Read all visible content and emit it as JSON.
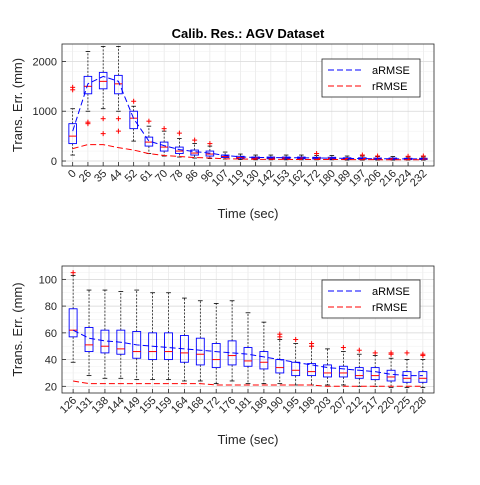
{
  "figure": {
    "title": "Calib. Res.: AGV Dataset"
  },
  "chart_data": [
    {
      "type": "box",
      "xlabel": "Time (sec)",
      "ylabel": "Trans. Err. (mm)",
      "ylim": [
        -100,
        2350
      ],
      "yticks": [
        0,
        1000,
        2000
      ],
      "grid": true,
      "legend_position": "top-right",
      "categories": [
        "0",
        "26",
        "35",
        "44",
        "52",
        "61",
        "70",
        "78",
        "86",
        "96",
        "107",
        "119",
        "130",
        "142",
        "153",
        "162",
        "172",
        "180",
        "189",
        "197",
        "206",
        "216",
        "224",
        "232"
      ],
      "boxes": [
        {
          "q1": 350,
          "median": 500,
          "q3": 750,
          "lo": 120,
          "hi": 1050
        },
        {
          "q1": 1350,
          "median": 1500,
          "q3": 1700,
          "lo": 1000,
          "hi": 2200
        },
        {
          "q1": 1450,
          "median": 1600,
          "q3": 1780,
          "lo": 1050,
          "hi": 2300
        },
        {
          "q1": 1350,
          "median": 1550,
          "q3": 1720,
          "lo": 1000,
          "hi": 2300
        },
        {
          "q1": 650,
          "median": 860,
          "q3": 1000,
          "lo": 400,
          "hi": 1100
        },
        {
          "q1": 300,
          "median": 380,
          "q3": 480,
          "lo": 150,
          "hi": 700
        },
        {
          "q1": 200,
          "median": 280,
          "q3": 380,
          "lo": 100,
          "hi": 600
        },
        {
          "q1": 150,
          "median": 200,
          "q3": 280,
          "lo": 80,
          "hi": 450
        },
        {
          "q1": 120,
          "median": 160,
          "q3": 220,
          "lo": 60,
          "hi": 350
        },
        {
          "q1": 100,
          "median": 140,
          "q3": 200,
          "lo": 50,
          "hi": 300
        },
        {
          "q1": 70,
          "median": 90,
          "q3": 120,
          "lo": 40,
          "hi": 180
        },
        {
          "q1": 55,
          "median": 70,
          "q3": 95,
          "lo": 30,
          "hi": 140
        },
        {
          "q1": 45,
          "median": 60,
          "q3": 80,
          "lo": 25,
          "hi": 120
        },
        {
          "q1": 45,
          "median": 60,
          "q3": 80,
          "lo": 25,
          "hi": 120
        },
        {
          "q1": 45,
          "median": 60,
          "q3": 80,
          "lo": 25,
          "hi": 120
        },
        {
          "q1": 45,
          "median": 60,
          "q3": 80,
          "lo": 25,
          "hi": 120
        },
        {
          "q1": 40,
          "median": 55,
          "q3": 75,
          "lo": 25,
          "hi": 110
        },
        {
          "q1": 40,
          "median": 55,
          "q3": 75,
          "lo": 25,
          "hi": 110
        },
        {
          "q1": 35,
          "median": 50,
          "q3": 65,
          "lo": 20,
          "hi": 100
        },
        {
          "q1": 35,
          "median": 50,
          "q3": 65,
          "lo": 20,
          "hi": 100
        },
        {
          "q1": 30,
          "median": 45,
          "q3": 60,
          "lo": 20,
          "hi": 90
        },
        {
          "q1": 30,
          "median": 45,
          "q3": 60,
          "lo": 20,
          "hi": 90
        },
        {
          "q1": 30,
          "median": 40,
          "q3": 55,
          "lo": 20,
          "hi": 80
        },
        {
          "q1": 30,
          "median": 40,
          "q3": 55,
          "lo": 20,
          "hi": 80
        }
      ],
      "outliers": [
        {
          "i": 0,
          "y": 1480
        },
        {
          "i": 0,
          "y": 1430
        },
        {
          "i": 1,
          "y": 780
        },
        {
          "i": 1,
          "y": 750
        },
        {
          "i": 2,
          "y": 850
        },
        {
          "i": 2,
          "y": 550
        },
        {
          "i": 3,
          "y": 850
        },
        {
          "i": 3,
          "y": 600
        },
        {
          "i": 4,
          "y": 1200
        },
        {
          "i": 5,
          "y": 800
        },
        {
          "i": 6,
          "y": 650
        },
        {
          "i": 7,
          "y": 560
        },
        {
          "i": 8,
          "y": 420
        },
        {
          "i": 9,
          "y": 350
        },
        {
          "i": 16,
          "y": 150
        },
        {
          "i": 19,
          "y": 120
        },
        {
          "i": 20,
          "y": 100
        },
        {
          "i": 22,
          "y": 95
        },
        {
          "i": 23,
          "y": 100
        }
      ],
      "series": [
        {
          "name": "aRMSE",
          "color": "#0000ff",
          "values": [
            600,
            1550,
            1700,
            1600,
            850,
            400,
            310,
            230,
            190,
            160,
            110,
            85,
            70,
            68,
            66,
            64,
            60,
            58,
            52,
            50,
            45,
            44,
            42,
            42
          ]
        },
        {
          "name": "rRMSE",
          "color": "#ff0000",
          "values": [
            250,
            330,
            330,
            270,
            220,
            150,
            110,
            90,
            70,
            60,
            45,
            40,
            35,
            33,
            32,
            31,
            30,
            30,
            28,
            28,
            27,
            27,
            26,
            26
          ]
        }
      ]
    },
    {
      "type": "box",
      "xlabel": "Time (sec)",
      "ylabel": "Trans. Err. (mm)",
      "ylim": [
        15,
        110
      ],
      "yticks": [
        20,
        40,
        60,
        80,
        100
      ],
      "grid": true,
      "legend_position": "top-right",
      "categories": [
        "126",
        "131",
        "138",
        "144",
        "149",
        "155",
        "159",
        "164",
        "168",
        "172",
        "176",
        "181",
        "186",
        "190",
        "195",
        "198",
        "203",
        "207",
        "212",
        "217",
        "220",
        "225",
        "228"
      ],
      "boxes": [
        {
          "q1": 57,
          "median": 62,
          "q3": 78,
          "lo": 38,
          "hi": 103
        },
        {
          "q1": 46,
          "median": 51,
          "q3": 64,
          "lo": 28,
          "hi": 92
        },
        {
          "q1": 45,
          "median": 50,
          "q3": 62,
          "lo": 26,
          "hi": 92
        },
        {
          "q1": 44,
          "median": 48,
          "q3": 62,
          "lo": 26,
          "hi": 91
        },
        {
          "q1": 41,
          "median": 46,
          "q3": 61,
          "lo": 25,
          "hi": 92
        },
        {
          "q1": 40,
          "median": 46,
          "q3": 60,
          "lo": 25,
          "hi": 90
        },
        {
          "q1": 40,
          "median": 46,
          "q3": 60,
          "lo": 25,
          "hi": 90
        },
        {
          "q1": 38,
          "median": 45,
          "q3": 58,
          "lo": 24,
          "hi": 86
        },
        {
          "q1": 36,
          "median": 44,
          "q3": 56,
          "lo": 24,
          "hi": 84
        },
        {
          "q1": 34,
          "median": 40,
          "q3": 52,
          "lo": 22,
          "hi": 82
        },
        {
          "q1": 36,
          "median": 43,
          "q3": 54,
          "lo": 24,
          "hi": 84
        },
        {
          "q1": 35,
          "median": 39,
          "q3": 49,
          "lo": 22,
          "hi": 75
        },
        {
          "q1": 33,
          "median": 38,
          "q3": 46,
          "lo": 22,
          "hi": 68
        },
        {
          "q1": 30,
          "median": 34,
          "q3": 40,
          "lo": 22,
          "hi": 55
        },
        {
          "q1": 28,
          "median": 32,
          "q3": 38,
          "lo": 21,
          "hi": 52
        },
        {
          "q1": 28,
          "median": 31,
          "q3": 37,
          "lo": 21,
          "hi": 50
        },
        {
          "q1": 27,
          "median": 30,
          "q3": 36,
          "lo": 21,
          "hi": 48
        },
        {
          "q1": 27,
          "median": 30,
          "q3": 35,
          "lo": 21,
          "hi": 46
        },
        {
          "q1": 26,
          "median": 28,
          "q3": 34,
          "lo": 20,
          "hi": 44
        },
        {
          "q1": 25,
          "median": 28,
          "q3": 34,
          "lo": 20,
          "hi": 43
        },
        {
          "q1": 24,
          "median": 27,
          "q3": 32,
          "lo": 19,
          "hi": 41
        },
        {
          "q1": 23,
          "median": 26,
          "q3": 31,
          "lo": 19,
          "hi": 40
        },
        {
          "q1": 23,
          "median": 26,
          "q3": 31,
          "lo": 19,
          "hi": 40
        }
      ],
      "outliers": [
        {
          "i": 0,
          "y": 105
        },
        {
          "i": 13,
          "y": 59
        },
        {
          "i": 13,
          "y": 57
        },
        {
          "i": 14,
          "y": 55
        },
        {
          "i": 15,
          "y": 52
        },
        {
          "i": 15,
          "y": 50
        },
        {
          "i": 17,
          "y": 49
        },
        {
          "i": 18,
          "y": 47
        },
        {
          "i": 19,
          "y": 45
        },
        {
          "i": 20,
          "y": 45
        },
        {
          "i": 20,
          "y": 44
        },
        {
          "i": 21,
          "y": 45
        },
        {
          "i": 22,
          "y": 44
        },
        {
          "i": 22,
          "y": 43
        }
      ],
      "series": [
        {
          "name": "aRMSE",
          "color": "#0000ff",
          "values": [
            62,
            56,
            54,
            53,
            51,
            50,
            49,
            48,
            47,
            46,
            45,
            44,
            42,
            40,
            38,
            36,
            34,
            33,
            32,
            31,
            29,
            28,
            28
          ]
        },
        {
          "name": "rRMSE",
          "color": "#ff0000",
          "values": [
            24,
            22,
            22,
            22,
            22,
            22,
            22,
            22,
            22,
            21,
            21,
            21,
            21,
            21,
            21,
            21,
            20,
            20,
            20,
            20,
            20,
            20,
            20
          ]
        }
      ]
    }
  ]
}
